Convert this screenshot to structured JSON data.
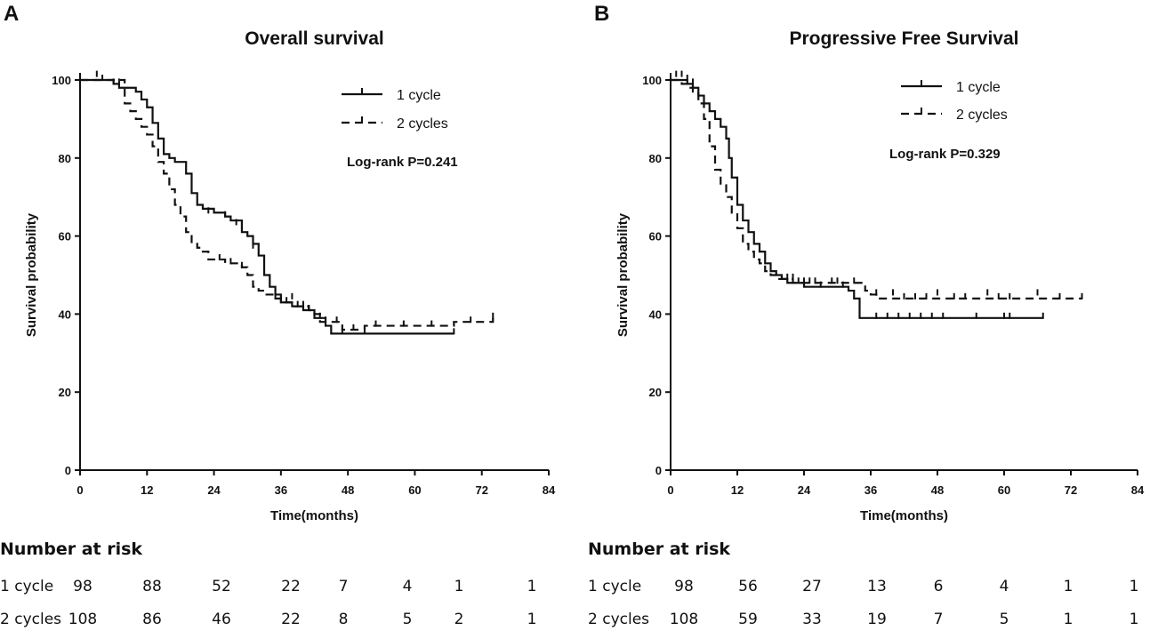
{
  "panels": [
    {
      "letter": "A",
      "chart_data": {
        "type": "line",
        "title": "Overall survival",
        "xlabel": "Time(months)",
        "ylabel": "Survival probability",
        "xlim": [
          0,
          84
        ],
        "ylim": [
          0,
          100
        ],
        "xticks": [
          0,
          12,
          24,
          36,
          48,
          60,
          72,
          84
        ],
        "yticks": [
          0,
          20,
          40,
          60,
          80,
          100
        ],
        "annotation": "Log-rank P=0.241",
        "series": [
          {
            "name": "1 cycle",
            "style": "solid",
            "steps": [
              [
                0,
                100
              ],
              [
                5,
                100
              ],
              [
                6,
                99
              ],
              [
                7,
                98
              ],
              [
                9,
                98
              ],
              [
                10,
                97
              ],
              [
                11,
                95
              ],
              [
                12,
                93
              ],
              [
                13,
                89
              ],
              [
                14,
                85
              ],
              [
                15,
                81
              ],
              [
                16,
                80
              ],
              [
                17,
                79
              ],
              [
                18,
                79
              ],
              [
                19,
                76
              ],
              [
                20,
                71
              ],
              [
                21,
                68
              ],
              [
                22,
                67
              ],
              [
                24,
                66
              ],
              [
                26,
                65
              ],
              [
                27,
                64
              ],
              [
                29,
                61
              ],
              [
                30,
                60
              ],
              [
                31,
                58
              ],
              [
                32,
                55
              ],
              [
                33,
                50
              ],
              [
                34,
                47
              ],
              [
                35,
                45
              ],
              [
                36,
                43
              ],
              [
                38,
                42
              ],
              [
                40,
                41
              ],
              [
                42,
                39
              ],
              [
                44,
                37
              ],
              [
                45,
                35
              ],
              [
                55,
                35
              ],
              [
                67,
                35
              ]
            ],
            "censor": [
              [
                3,
                101
              ],
              [
                7,
                99
              ],
              [
                23,
                66
              ],
              [
                26,
                65
              ],
              [
                28,
                63
              ],
              [
                31,
                57
              ],
              [
                36,
                43
              ],
              [
                38,
                44
              ],
              [
                39,
                42
              ],
              [
                41,
                41
              ],
              [
                43,
                39
              ],
              [
                47,
                35
              ],
              [
                51,
                35
              ],
              [
                67,
                35
              ]
            ]
          },
          {
            "name": "2 cycles",
            "style": "dashed",
            "steps": [
              [
                0,
                100
              ],
              [
                7,
                100
              ],
              [
                8,
                94
              ],
              [
                9,
                92
              ],
              [
                10,
                90
              ],
              [
                11,
                88
              ],
              [
                12,
                86
              ],
              [
                13,
                83
              ],
              [
                14,
                79
              ],
              [
                15,
                76
              ],
              [
                16,
                72
              ],
              [
                17,
                68
              ],
              [
                18,
                65
              ],
              [
                19,
                61
              ],
              [
                20,
                58
              ],
              [
                21,
                57
              ],
              [
                22,
                56
              ],
              [
                23,
                54
              ],
              [
                25,
                54
              ],
              [
                26,
                53
              ],
              [
                28,
                53
              ],
              [
                29,
                52
              ],
              [
                30,
                50
              ],
              [
                31,
                47
              ],
              [
                32,
                46
              ],
              [
                33,
                45
              ],
              [
                34,
                45
              ],
              [
                35,
                44
              ],
              [
                36,
                43
              ],
              [
                37,
                43
              ],
              [
                38,
                42
              ],
              [
                40,
                42
              ],
              [
                41,
                41
              ],
              [
                42,
                40
              ],
              [
                43,
                38
              ],
              [
                46,
                38
              ],
              [
                47,
                36
              ],
              [
                50,
                36
              ],
              [
                51,
                37
              ],
              [
                66,
                37
              ],
              [
                67,
                38
              ],
              [
                72,
                38
              ],
              [
                74,
                39
              ]
            ],
            "censor": [
              [
                4,
                100
              ],
              [
                6,
                99
              ],
              [
                25,
                54
              ],
              [
                27,
                53
              ],
              [
                29,
                52
              ],
              [
                35,
                44
              ],
              [
                37,
                43
              ],
              [
                40,
                42
              ],
              [
                44,
                38
              ],
              [
                46,
                38
              ],
              [
                49,
                36
              ],
              [
                53,
                37
              ],
              [
                58,
                37
              ],
              [
                63,
                37
              ],
              [
                70,
                38
              ],
              [
                74,
                39
              ]
            ]
          }
        ]
      },
      "risk_table": {
        "title": "Number at risk",
        "rows": [
          {
            "label": "1 cycle",
            "values": [
              "98",
              "88",
              "52",
              "22",
              "7",
              "4",
              "1",
              "1"
            ]
          },
          {
            "label": "2 cycles",
            "values": [
              "108",
              "86",
              "46",
              "22",
              "8",
              "5",
              "2",
              "1"
            ]
          }
        ]
      }
    },
    {
      "letter": "B",
      "chart_data": {
        "type": "line",
        "title": "Progressive Free Survival",
        "xlabel": "Time(months)",
        "ylabel": "Survival probability",
        "xlim": [
          0,
          84
        ],
        "ylim": [
          0,
          100
        ],
        "xticks": [
          0,
          12,
          24,
          36,
          48,
          60,
          72,
          84
        ],
        "yticks": [
          0,
          20,
          40,
          60,
          80,
          100
        ],
        "annotation": "Log-rank P=0.329",
        "series": [
          {
            "name": "1 cycle",
            "style": "solid",
            "steps": [
              [
                0,
                100
              ],
              [
                2,
                100
              ],
              [
                3,
                99
              ],
              [
                4,
                98
              ],
              [
                5,
                96
              ],
              [
                6,
                94
              ],
              [
                7,
                92
              ],
              [
                8,
                90
              ],
              [
                9,
                88
              ],
              [
                10,
                85
              ],
              [
                10.5,
                80
              ],
              [
                11,
                75
              ],
              [
                12,
                68
              ],
              [
                13,
                64
              ],
              [
                14,
                61
              ],
              [
                15,
                58
              ],
              [
                16,
                56
              ],
              [
                17,
                53
              ],
              [
                18,
                51
              ],
              [
                19,
                50
              ],
              [
                20,
                49
              ],
              [
                21,
                48
              ],
              [
                22,
                48
              ],
              [
                24,
                47
              ],
              [
                26,
                47
              ],
              [
                28,
                47
              ],
              [
                30,
                47
              ],
              [
                32,
                46
              ],
              [
                33,
                44
              ],
              [
                34,
                39
              ],
              [
                67,
                39
              ]
            ],
            "censor": [
              [
                2,
                101
              ],
              [
                4,
                99
              ],
              [
                22,
                49
              ],
              [
                24,
                48
              ],
              [
                27,
                47
              ],
              [
                29,
                48
              ],
              [
                31,
                47
              ],
              [
                37,
                39
              ],
              [
                39,
                39
              ],
              [
                41,
                39
              ],
              [
                43,
                39
              ],
              [
                45,
                39
              ],
              [
                47,
                39
              ],
              [
                49,
                39
              ],
              [
                55,
                39
              ],
              [
                60,
                39
              ],
              [
                61,
                39
              ],
              [
                67,
                39
              ]
            ]
          },
          {
            "name": "2 cycles",
            "style": "dashed",
            "steps": [
              [
                0,
                100
              ],
              [
                2,
                99
              ],
              [
                3,
                98
              ],
              [
                4,
                97
              ],
              [
                5,
                94
              ],
              [
                6,
                90
              ],
              [
                7,
                83
              ],
              [
                8,
                77
              ],
              [
                9,
                73
              ],
              [
                10,
                70
              ],
              [
                11,
                66
              ],
              [
                12,
                62
              ],
              [
                13,
                58
              ],
              [
                14,
                56
              ],
              [
                15,
                54
              ],
              [
                16,
                53
              ],
              [
                17,
                51
              ],
              [
                18,
                50
              ],
              [
                19,
                49
              ],
              [
                20,
                49
              ],
              [
                22,
                48
              ],
              [
                24,
                48
              ],
              [
                28,
                48
              ],
              [
                30,
                48
              ],
              [
                34,
                48
              ],
              [
                35,
                46
              ],
              [
                36,
                45
              ],
              [
                37,
                44
              ],
              [
                74,
                44
              ]
            ],
            "censor": [
              [
                1,
                101
              ],
              [
                3,
                100
              ],
              [
                21,
                49
              ],
              [
                23,
                48
              ],
              [
                25,
                48
              ],
              [
                26,
                48
              ],
              [
                30,
                48
              ],
              [
                33,
                48
              ],
              [
                37,
                45
              ],
              [
                40,
                45
              ],
              [
                42,
                44
              ],
              [
                44,
                44
              ],
              [
                46,
                44
              ],
              [
                48,
                45
              ],
              [
                51,
                44
              ],
              [
                53,
                44
              ],
              [
                57,
                45
              ],
              [
                59,
                44
              ],
              [
                61,
                44
              ],
              [
                66,
                45
              ],
              [
                70,
                44
              ],
              [
                74,
                44
              ]
            ]
          }
        ]
      },
      "risk_table": {
        "title": "Number at risk",
        "rows": [
          {
            "label": "1 cycle",
            "values": [
              "98",
              "56",
              "27",
              "13",
              "6",
              "4",
              "1",
              "1"
            ]
          },
          {
            "label": "2 cycles",
            "values": [
              "108",
              "59",
              "33",
              "19",
              "7",
              "5",
              "1",
              "1"
            ]
          }
        ]
      }
    }
  ]
}
